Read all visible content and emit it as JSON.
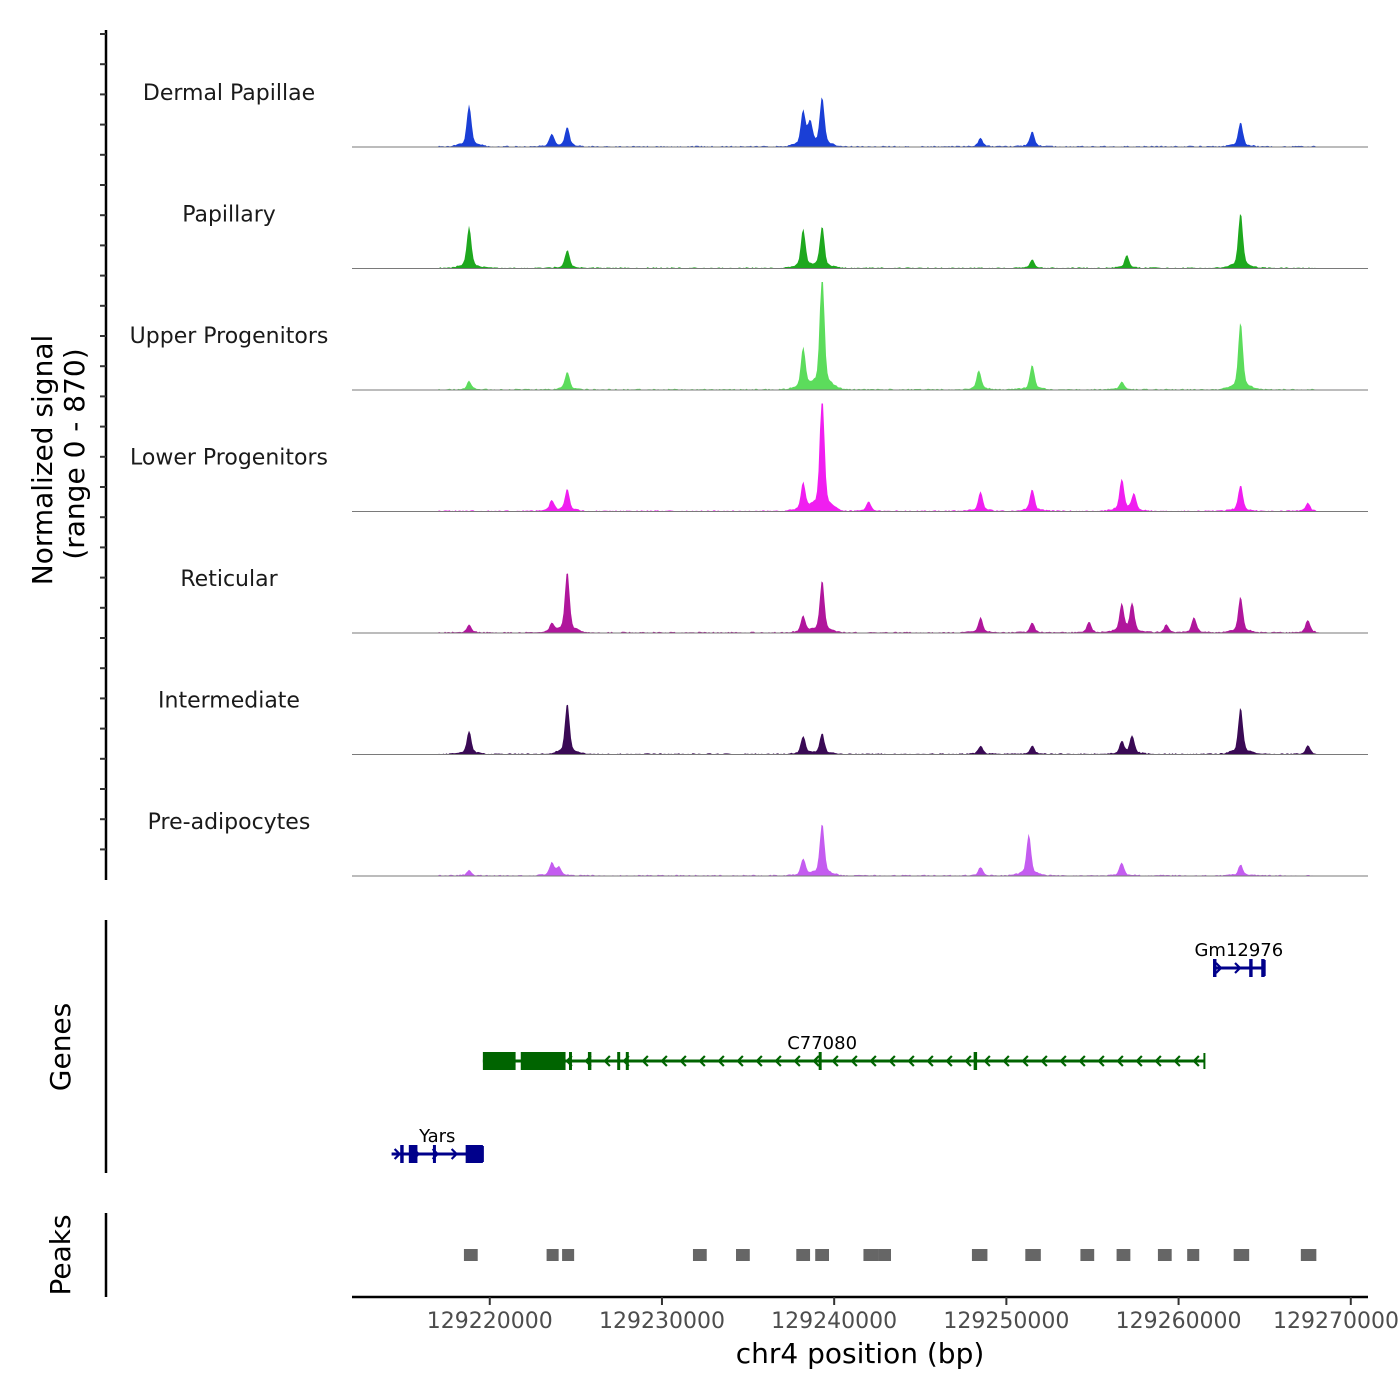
{
  "chart_data": {
    "type": "area",
    "title": "",
    "region": {
      "chromosome": "chr4",
      "start": 129212000,
      "end": 129271000
    },
    "xlabel": "chr4 position (bp)",
    "ylabel_line1": "Normalized signal",
    "ylabel_line2": "(range 0 - 870)",
    "ylim": [
      0,
      870
    ],
    "x_ticks": [
      129220000,
      129230000,
      129240000,
      129250000,
      129260000,
      129270000
    ],
    "x_tick_labels": [
      "129220000",
      "129230000",
      "129240000",
      "129250000",
      "129260000",
      "129270000"
    ],
    "series": [
      {
        "name": "Dermal Papillae",
        "color": "#1a3fd6",
        "peaks": [
          [
            129218800,
            300
          ],
          [
            129223600,
            90
          ],
          [
            129224500,
            140
          ],
          [
            129238200,
            250
          ],
          [
            129238600,
            160
          ],
          [
            129239300,
            350
          ],
          [
            129248500,
            60
          ],
          [
            129251500,
            110
          ],
          [
            129263600,
            180
          ]
        ]
      },
      {
        "name": "Papillary",
        "color": "#1ea81e",
        "peaks": [
          [
            129218800,
            300
          ],
          [
            129224500,
            130
          ],
          [
            129238200,
            280
          ],
          [
            129239300,
            300
          ],
          [
            129251500,
            60
          ],
          [
            129257000,
            90
          ],
          [
            129263600,
            400
          ]
        ]
      },
      {
        "name": "Upper Progenitors",
        "color": "#5cdc5c",
        "peaks": [
          [
            129218800,
            60
          ],
          [
            129224500,
            130
          ],
          [
            129238200,
            300
          ],
          [
            129239300,
            870
          ],
          [
            129248400,
            140
          ],
          [
            129251500,
            180
          ],
          [
            129256700,
            60
          ],
          [
            129263600,
            490
          ]
        ]
      },
      {
        "name": "Lower Progenitors",
        "color": "#f01ef0",
        "peaks": [
          [
            129223600,
            80
          ],
          [
            129224500,
            160
          ],
          [
            129238200,
            200
          ],
          [
            129239300,
            870
          ],
          [
            129242000,
            70
          ],
          [
            129248500,
            140
          ],
          [
            129251500,
            160
          ],
          [
            129256700,
            230
          ],
          [
            129257400,
            120
          ],
          [
            129263600,
            190
          ],
          [
            129267500,
            60
          ]
        ]
      },
      {
        "name": "Reticular",
        "color": "#b0169c",
        "peaks": [
          [
            129218800,
            60
          ],
          [
            129223600,
            60
          ],
          [
            129224500,
            440
          ],
          [
            129238200,
            120
          ],
          [
            129239300,
            380
          ],
          [
            129248500,
            110
          ],
          [
            129251500,
            70
          ],
          [
            129254800,
            80
          ],
          [
            129256700,
            200
          ],
          [
            129257300,
            210
          ],
          [
            129259300,
            60
          ],
          [
            129260900,
            110
          ],
          [
            129263600,
            260
          ],
          [
            129267500,
            90
          ]
        ]
      },
      {
        "name": "Intermediate",
        "color": "#3a0a55",
        "peaks": [
          [
            129218800,
            170
          ],
          [
            129224500,
            370
          ],
          [
            129238200,
            130
          ],
          [
            129239300,
            150
          ],
          [
            129248500,
            60
          ],
          [
            129251500,
            60
          ],
          [
            129256700,
            90
          ],
          [
            129257300,
            130
          ],
          [
            129263600,
            340
          ],
          [
            129267500,
            60
          ]
        ]
      },
      {
        "name": "Pre-adipocytes",
        "color": "#c45cf0",
        "peaks": [
          [
            129218800,
            40
          ],
          [
            129223600,
            90
          ],
          [
            129224000,
            60
          ],
          [
            129238200,
            120
          ],
          [
            129239300,
            380
          ],
          [
            129248500,
            60
          ],
          [
            129251300,
            300
          ],
          [
            129256700,
            90
          ],
          [
            129263600,
            80
          ]
        ]
      }
    ],
    "genes": [
      {
        "name": "Gm12976",
        "strand": "+",
        "color": "#00008b",
        "start": 129262000,
        "end": 129265000,
        "row": 1,
        "exons": [
          [
            129262000,
            129262200
          ],
          [
            129264100,
            129264300
          ],
          [
            129264800,
            129265000
          ]
        ]
      },
      {
        "name": "C77080",
        "strand": "-",
        "color": "#006400",
        "start": 129219600,
        "end": 129261500,
        "row": 2,
        "exons": [
          [
            129219600,
            129221500
          ],
          [
            129221800,
            129224400
          ],
          [
            129224600,
            129224700
          ],
          [
            129225700,
            129225900
          ],
          [
            129227400,
            129227500
          ],
          [
            129227900,
            129228000
          ],
          [
            129239100,
            129239200
          ],
          [
            129248100,
            129248300
          ]
        ]
      },
      {
        "name": "Yars",
        "strand": "+",
        "color": "#00008b",
        "start": 129214300,
        "end": 129219600,
        "row": 3,
        "exons": [
          [
            129214800,
            129215000
          ],
          [
            129215300,
            129215800
          ],
          [
            129216700,
            129216800
          ],
          [
            129218600,
            129219600
          ]
        ]
      }
    ],
    "genes_label": "Genes",
    "peaks_label": "Peaks",
    "peaks_color": "#666666",
    "peak_regions": [
      [
        129218500,
        129219300
      ],
      [
        129223300,
        129224000
      ],
      [
        129224200,
        129224900
      ],
      [
        129231800,
        129232600
      ],
      [
        129234300,
        129235100
      ],
      [
        129237800,
        129238600
      ],
      [
        129238900,
        129239700
      ],
      [
        129241700,
        129242600
      ],
      [
        129242600,
        129243300
      ],
      [
        129248000,
        129248900
      ],
      [
        129251100,
        129252000
      ],
      [
        129254300,
        129255100
      ],
      [
        129256400,
        129257200
      ],
      [
        129258800,
        129259600
      ],
      [
        129260500,
        129261200
      ],
      [
        129263200,
        129264100
      ],
      [
        129267100,
        129268000
      ]
    ]
  }
}
